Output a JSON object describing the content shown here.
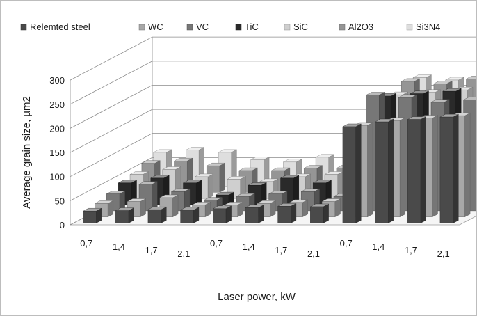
{
  "chart_data": {
    "type": "bar",
    "title": "",
    "xlabel": "Laser power, kW",
    "ylabel": "Average grain size, µm2",
    "ylim": [
      0,
      300
    ],
    "yticks": [
      "0",
      "50",
      "100",
      "150",
      "200",
      "250",
      "300"
    ],
    "legend_position": "top",
    "grid": true,
    "categories": [
      "0,7",
      "1,4",
      "1,7",
      "2,1"
    ],
    "groups": [
      {
        "series": [
          {
            "name": "Relemted steel",
            "color": "#4a4a4a",
            "values": [
              25,
              26,
              28,
              27
            ]
          },
          {
            "name": "WC",
            "color": "#a8a8a8",
            "values": [
              28,
              32,
              40,
              25
            ]
          },
          {
            "name": "VC",
            "color": "#777777",
            "values": [
              35,
              55,
              40,
              22
            ]
          },
          {
            "name": "TiC",
            "color": "#2a2a2a",
            "values": [
              45,
              55,
              45,
              20
            ]
          },
          {
            "name": "SiC",
            "color": "#cfcfcf",
            "values": [
              50,
              60,
              45,
              40
            ]
          },
          {
            "name": "Al2O3",
            "color": "#959595",
            "values": [
              60,
              65,
              55,
              45
            ]
          },
          {
            "name": "Si3N4",
            "color": "#dedede",
            "values": [
              70,
              75,
              70,
              55
            ]
          }
        ]
      },
      {
        "series": [
          {
            "name": "Relemted steel",
            "color": "#4a4a4a",
            "values": [
              30,
              32,
              35,
              34
            ]
          },
          {
            "name": "WC",
            "color": "#a8a8a8",
            "values": [
              25,
              28,
              30,
              32
            ]
          },
          {
            "name": "VC",
            "color": "#777777",
            "values": [
              30,
              35,
              40,
              30
            ]
          },
          {
            "name": "TiC",
            "color": "#2a2a2a",
            "values": [
              40,
              55,
              45,
              70
            ]
          },
          {
            "name": "SiC",
            "color": "#cfcfcf",
            "values": [
              35,
              45,
              50,
              40
            ]
          },
          {
            "name": "Al2O3",
            "color": "#959595",
            "values": [
              45,
              50,
              50,
              50
            ]
          },
          {
            "name": "Si3N4",
            "color": "#dedede",
            "values": [
              50,
              60,
              55,
              55
            ]
          }
        ]
      },
      {
        "series": [
          {
            "name": "Relemted steel",
            "color": "#4a4a4a",
            "values": [
              200,
              210,
              215,
              220
            ]
          },
          {
            "name": "WC",
            "color": "#a8a8a8",
            "values": [
              190,
              200,
              205,
              210
            ]
          },
          {
            "name": "VC",
            "color": "#777777",
            "values": [
              240,
              235,
              225,
              230
            ]
          },
          {
            "name": "TiC",
            "color": "#2a2a2a",
            "values": [
              225,
              230,
              235,
              220
            ]
          },
          {
            "name": "SiC",
            "color": "#cfcfcf",
            "values": [
              215,
              220,
              225,
              215
            ]
          },
          {
            "name": "Al2O3",
            "color": "#959595",
            "values": [
              230,
              225,
              235,
              230
            ]
          },
          {
            "name": "Si3N4",
            "color": "#dedede",
            "values": [
              225,
              220,
              230,
              240
            ]
          }
        ]
      }
    ]
  }
}
